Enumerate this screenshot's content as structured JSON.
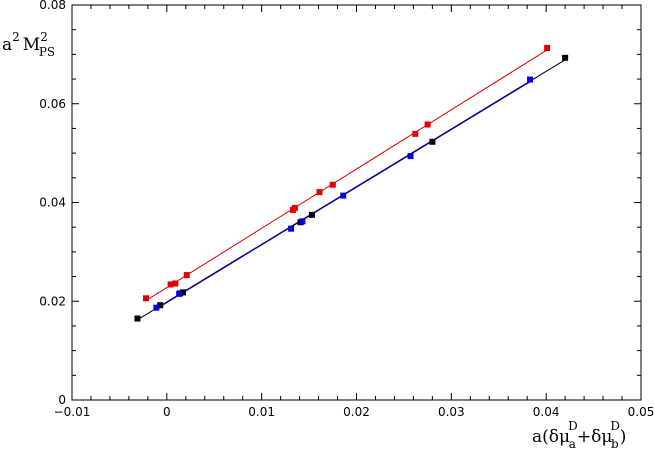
{
  "chart_data": {
    "type": "scatter",
    "title": "",
    "xlabel": {
      "prefix": "a(",
      "delta1": "δμ",
      "sup1": "D",
      "sub1": "a",
      "plus": "+",
      "delta2": "δμ",
      "sup2": "D",
      "sub2": "b",
      "suffix": ")"
    },
    "ylabel": {
      "a": "a",
      "a_sup": "2",
      "m": "M",
      "m_sup": "2",
      "m_sub": "PS"
    },
    "xlim": [
      -0.01,
      0.05
    ],
    "ylim": [
      0,
      0.08
    ],
    "x_ticks": [
      -0.01,
      0,
      0.01,
      0.02,
      0.03,
      0.04,
      0.05
    ],
    "x_tick_labels": [
      "−0.01",
      "0",
      "0.01",
      "0.02",
      "0.03",
      "0.04",
      "0.05"
    ],
    "y_ticks": [
      0,
      0.02,
      0.04,
      0.06,
      0.08
    ],
    "y_tick_labels": [
      "0",
      "0.02",
      "0.04",
      "0.06",
      "0.08"
    ],
    "grid": false,
    "legend": "none",
    "series": [
      {
        "color": "#e00000",
        "marker": "square",
        "fit_line": true,
        "points": [
          [
            -0.0022,
            0.0206
          ],
          [
            0.0004,
            0.0234
          ],
          [
            0.0009,
            0.0236
          ],
          [
            0.0021,
            0.0253
          ],
          [
            0.0133,
            0.0385
          ],
          [
            0.0135,
            0.0389
          ],
          [
            0.0161,
            0.0421
          ],
          [
            0.0175,
            0.0436
          ],
          [
            0.0262,
            0.0539
          ],
          [
            0.0275,
            0.0558
          ],
          [
            0.0401,
            0.0713
          ]
        ]
      },
      {
        "color": "#000000",
        "marker": "square",
        "fit_line": true,
        "points": [
          [
            -0.0031,
            0.0165
          ],
          [
            -0.0007,
            0.0192
          ],
          [
            0.0014,
            0.0216
          ],
          [
            0.0017,
            0.0218
          ],
          [
            0.0141,
            0.036
          ],
          [
            0.0153,
            0.0375
          ],
          [
            0.028,
            0.0523
          ],
          [
            0.042,
            0.0693
          ]
        ]
      },
      {
        "color": "#0000e0",
        "marker": "square",
        "fit_line": true,
        "points": [
          [
            -0.0011,
            0.0187
          ],
          [
            0.0013,
            0.0215
          ],
          [
            0.0131,
            0.0347
          ],
          [
            0.0143,
            0.0362
          ],
          [
            0.0186,
            0.0414
          ],
          [
            0.0257,
            0.0494
          ],
          [
            0.0383,
            0.0649
          ]
        ]
      }
    ]
  }
}
